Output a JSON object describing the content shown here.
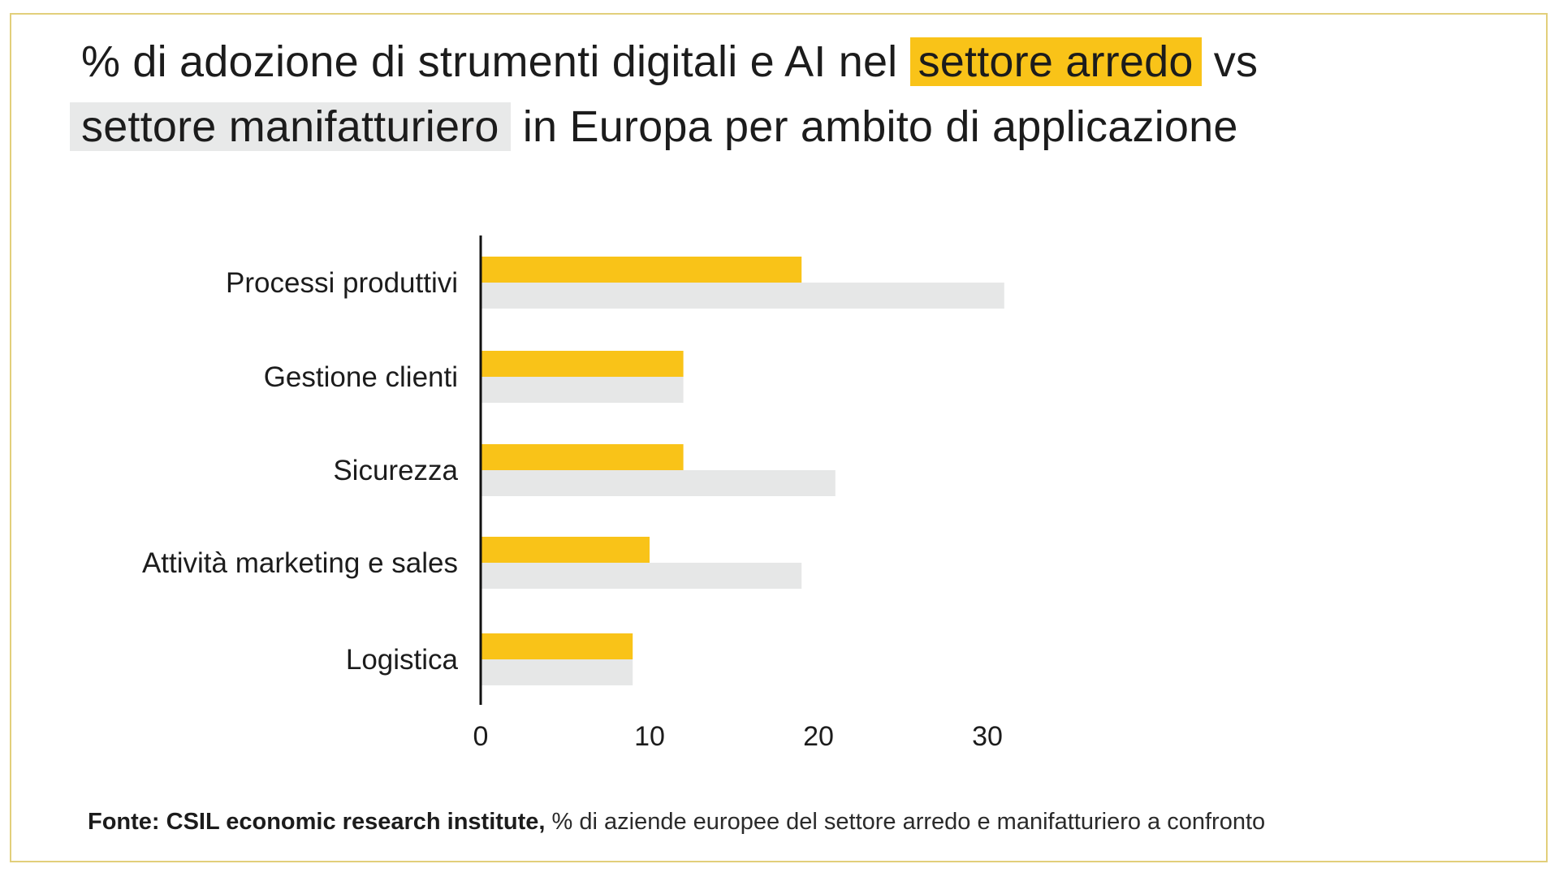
{
  "title": {
    "part1": "% di adozione di strumenti digitali e AI nel ",
    "highlight1": "settore arredo",
    "part2": " vs",
    "highlight2": "settore manifatturiero",
    "part3": " in Europa per ambito di applicazione"
  },
  "footer": {
    "source": "Fonte: CSIL economic research institute,",
    "note": " % di aziende europee del settore arredo e manifatturiero a confronto"
  },
  "colors": {
    "arredo": "#f9c318",
    "manifatturiero": "#e6e7e7",
    "axis": "#111111"
  },
  "chart_data": {
    "type": "bar",
    "orientation": "horizontal",
    "categories": [
      "Processi produttivi",
      "Gestione clienti",
      "Sicurezza",
      "Attività marketing e sales",
      "Logistica"
    ],
    "series": [
      {
        "name": "settore arredo",
        "values": [
          19,
          12,
          12,
          10,
          9
        ]
      },
      {
        "name": "settore manifatturiero",
        "values": [
          31,
          12,
          21,
          19,
          9
        ]
      }
    ],
    "xticks": [
      "0",
      "10",
      "20",
      "30"
    ],
    "xlim": [
      0,
      30
    ],
    "grid": false,
    "title": "% di adozione di strumenti digitali e AI nel settore arredo vs settore manifatturiero in Europa per ambito di applicazione"
  }
}
